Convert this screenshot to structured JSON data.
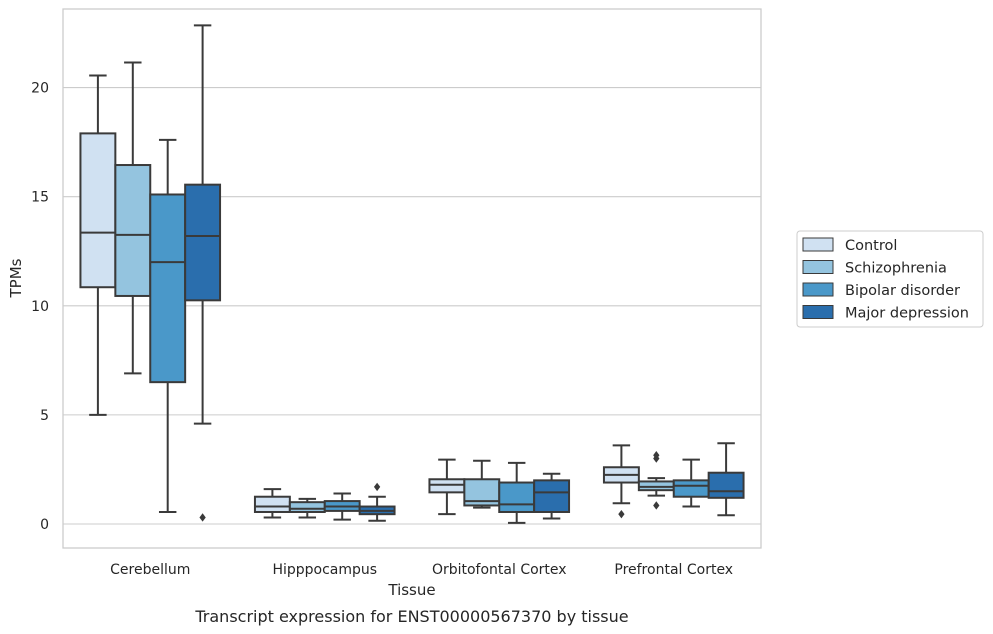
{
  "chart_data": {
    "type": "boxplot",
    "title": "",
    "caption": "Transcript expression for ENST00000567370 by tissue",
    "xlabel": "Tissue",
    "ylabel": "TPMs",
    "ylim": [
      -1.1,
      23.6
    ],
    "yticks": [
      0,
      5,
      10,
      15,
      20
    ],
    "grid": "horizontal",
    "legend_position": "right",
    "categories": [
      "Cerebellum",
      "Hipppocampus",
      "Orbitofontal Cortex",
      "Prefrontal Cortex"
    ],
    "series": [
      {
        "name": "Control",
        "color": "#d0e1f2",
        "boxes": [
          {
            "whisker_low": 5.0,
            "q1": 10.85,
            "median": 13.35,
            "q3": 17.9,
            "whisker_high": 20.55,
            "outliers": []
          },
          {
            "whisker_low": 0.3,
            "q1": 0.55,
            "median": 0.8,
            "q3": 1.25,
            "whisker_high": 1.6,
            "outliers": []
          },
          {
            "whisker_low": 0.45,
            "q1": 1.45,
            "median": 1.8,
            "q3": 2.05,
            "whisker_high": 2.95,
            "outliers": []
          },
          {
            "whisker_low": 0.95,
            "q1": 1.9,
            "median": 2.25,
            "q3": 2.6,
            "whisker_high": 3.6,
            "outliers": [
              0.45
            ]
          }
        ]
      },
      {
        "name": "Schizophrenia",
        "color": "#94c4df",
        "boxes": [
          {
            "whisker_low": 6.9,
            "q1": 10.45,
            "median": 13.25,
            "q3": 16.45,
            "whisker_high": 21.15,
            "outliers": []
          },
          {
            "whisker_low": 0.3,
            "q1": 0.55,
            "median": 0.7,
            "q3": 1.0,
            "whisker_high": 1.15,
            "outliers": []
          },
          {
            "whisker_low": 0.75,
            "q1": 0.85,
            "median": 1.05,
            "q3": 2.05,
            "whisker_high": 2.9,
            "outliers": []
          },
          {
            "whisker_low": 1.3,
            "q1": 1.55,
            "median": 1.7,
            "q3": 1.95,
            "whisker_high": 2.1,
            "outliers": [
              0.85,
              3.0,
              3.15
            ]
          }
        ]
      },
      {
        "name": "Bipolar disorder",
        "color": "#4a98c9",
        "boxes": [
          {
            "whisker_low": 0.55,
            "q1": 6.5,
            "median": 12.0,
            "q3": 15.1,
            "whisker_high": 17.6,
            "outliers": []
          },
          {
            "whisker_low": 0.2,
            "q1": 0.6,
            "median": 0.8,
            "q3": 1.05,
            "whisker_high": 1.4,
            "outliers": []
          },
          {
            "whisker_low": 0.05,
            "q1": 0.55,
            "median": 0.9,
            "q3": 1.9,
            "whisker_high": 2.8,
            "outliers": []
          },
          {
            "whisker_low": 0.8,
            "q1": 1.25,
            "median": 1.75,
            "q3": 2.0,
            "whisker_high": 2.95,
            "outliers": []
          }
        ]
      },
      {
        "name": "Major depression",
        "color": "#2a6ead",
        "boxes": [
          {
            "whisker_low": 4.6,
            "q1": 10.25,
            "median": 13.2,
            "q3": 15.55,
            "whisker_high": 22.85,
            "outliers": [
              0.3
            ]
          },
          {
            "whisker_low": 0.15,
            "q1": 0.45,
            "median": 0.6,
            "q3": 0.8,
            "whisker_high": 1.25,
            "outliers": [
              1.7
            ]
          },
          {
            "whisker_low": 0.25,
            "q1": 0.55,
            "median": 1.45,
            "q3": 2.0,
            "whisker_high": 2.3,
            "outliers": []
          },
          {
            "whisker_low": 0.4,
            "q1": 1.2,
            "median": 1.5,
            "q3": 2.35,
            "whisker_high": 3.7,
            "outliers": []
          }
        ]
      }
    ]
  }
}
